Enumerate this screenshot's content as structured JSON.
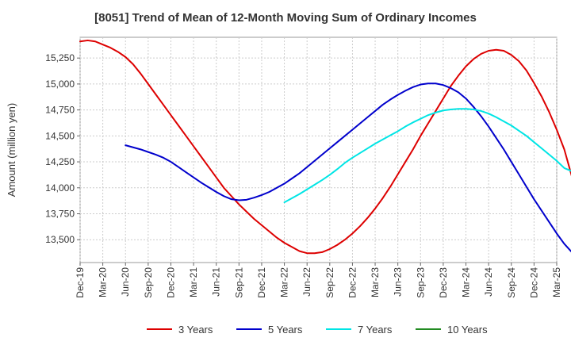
{
  "chart_data": {
    "type": "line",
    "title": "[8051]  Trend of Mean of 12-Month Moving Sum of Ordinary Incomes",
    "ylabel": "Amount (million yen)",
    "xlabel": "",
    "ylim": [
      13280,
      15450
    ],
    "yticks": [
      13500,
      13750,
      14000,
      14250,
      14500,
      14750,
      15000,
      15250
    ],
    "ytick_labels": [
      "13,500",
      "13,750",
      "14,000",
      "14,250",
      "14,500",
      "14,750",
      "15,000",
      "15,250"
    ],
    "xticks": [
      "Dec-19",
      "Mar-20",
      "Jun-20",
      "Sep-20",
      "Dec-20",
      "Mar-21",
      "Jun-21",
      "Sep-21",
      "Dec-21",
      "Mar-22",
      "Jun-22",
      "Sep-22",
      "Dec-22",
      "Mar-23",
      "Jun-23",
      "Sep-23",
      "Dec-23",
      "Mar-24",
      "Jun-24",
      "Sep-24",
      "Dec-24",
      "Mar-25"
    ],
    "grid": true,
    "legend_position": "bottom",
    "series": [
      {
        "name": "3 Years",
        "color": "#dd0000",
        "start_index": 0,
        "values": [
          15410,
          15420,
          15410,
          15380,
          15350,
          15310,
          15260,
          15190,
          15100,
          15000,
          14900,
          14800,
          14700,
          14600,
          14500,
          14400,
          14300,
          14200,
          14100,
          14000,
          13920,
          13840,
          13770,
          13700,
          13640,
          13580,
          13520,
          13470,
          13430,
          13390,
          13370,
          13370,
          13380,
          13410,
          13450,
          13500,
          13560,
          13630,
          13710,
          13800,
          13900,
          14010,
          14130,
          14250,
          14370,
          14500,
          14620,
          14740,
          14860,
          14980,
          15080,
          15170,
          15240,
          15290,
          15320,
          15330,
          15320,
          15280,
          15220,
          15130,
          15010,
          14880,
          14730,
          14560,
          14370,
          14110
        ]
      },
      {
        "name": "5 Years",
        "color": "#0000cc",
        "start_index": 6,
        "values": [
          14410,
          14390,
          14370,
          14345,
          14320,
          14290,
          14250,
          14200,
          14150,
          14100,
          14050,
          14005,
          13960,
          13920,
          13890,
          13880,
          13885,
          13905,
          13930,
          13960,
          14000,
          14040,
          14090,
          14140,
          14200,
          14260,
          14320,
          14380,
          14440,
          14500,
          14560,
          14620,
          14680,
          14740,
          14800,
          14850,
          14895,
          14935,
          14970,
          14995,
          15005,
          15005,
          14990,
          14960,
          14920,
          14860,
          14780,
          14690,
          14590,
          14480,
          14370,
          14250,
          14130,
          14010,
          13890,
          13780,
          13670,
          13560,
          13460,
          13380,
          13330
        ]
      },
      {
        "name": "7 Years",
        "color": "#00e5e5",
        "start_index": 27,
        "values": [
          13860,
          13900,
          13940,
          13985,
          14030,
          14075,
          14125,
          14180,
          14240,
          14290,
          14335,
          14380,
          14425,
          14465,
          14505,
          14545,
          14590,
          14630,
          14665,
          14700,
          14725,
          14745,
          14755,
          14760,
          14760,
          14755,
          14740,
          14715,
          14680,
          14640,
          14600,
          14550,
          14500,
          14440,
          14380,
          14320,
          14260,
          14190,
          14160
        ]
      },
      {
        "name": "10 Years",
        "color": "#228b22",
        "start_index": 0,
        "values": []
      }
    ]
  },
  "legend": {
    "items": [
      {
        "label": "3 Years",
        "color": "#dd0000"
      },
      {
        "label": "5 Years",
        "color": "#0000cc"
      },
      {
        "label": "7 Years",
        "color": "#00e5e5"
      },
      {
        "label": "10 Years",
        "color": "#228b22"
      }
    ]
  }
}
